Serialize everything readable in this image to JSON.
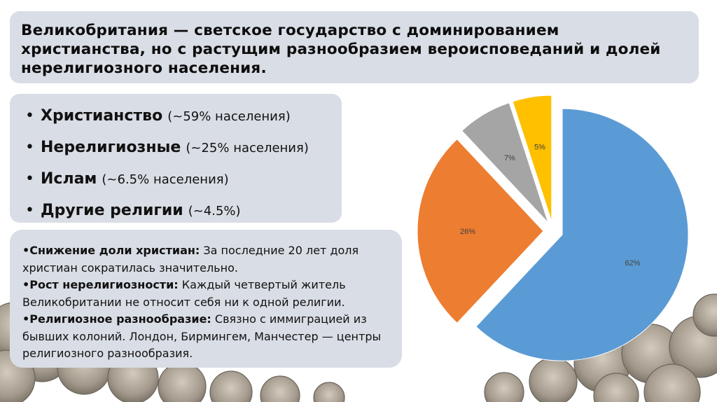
{
  "slide": {
    "title": "Великобритания — светское государство с доминированием христианства, но с растущим разнообразием вероисповеданий и долей нерелигиозного населения."
  },
  "summary_list": {
    "items": [
      {
        "bullet": "•",
        "name": "Христианство",
        "pct": "(~59% населения)"
      },
      {
        "bullet": "•",
        "name": "Нерелигиозные",
        "pct": "(~25% населения)"
      },
      {
        "bullet": "•",
        "name": "Ислам",
        "pct": "(~6.5% населения)"
      },
      {
        "bullet": "•",
        "name": "Другие религии",
        "pct": "(~4.5%)"
      }
    ]
  },
  "notes": {
    "items": [
      {
        "head": "•Снижение доли христиан:",
        "text": " За последние 20 лет доля христиан сократилась значительно."
      },
      {
        "head": "•Рост нерелигиозности:",
        "text": " Каждый четвертый житель Великобритании не относит себя ни к одной религии."
      },
      {
        "head": "•Религиозное разнообразие:",
        "text": " Связно с иммиграцией из бывших колоний. Лондон, Бирмингем, Манчестер — центры религиозного разнообразия."
      }
    ]
  },
  "chart_data": {
    "type": "pie",
    "title": "",
    "exploded": true,
    "slices": [
      {
        "label": "62%",
        "value": 62,
        "color": "#5b9bd5"
      },
      {
        "label": "26%",
        "value": 26,
        "color": "#ed7d31"
      },
      {
        "label": "7%",
        "value": 7,
        "color": "#a5a5a5"
      },
      {
        "label": "5%",
        "value": 5,
        "color": "#ffc000"
      }
    ],
    "label_color": "#404040"
  }
}
